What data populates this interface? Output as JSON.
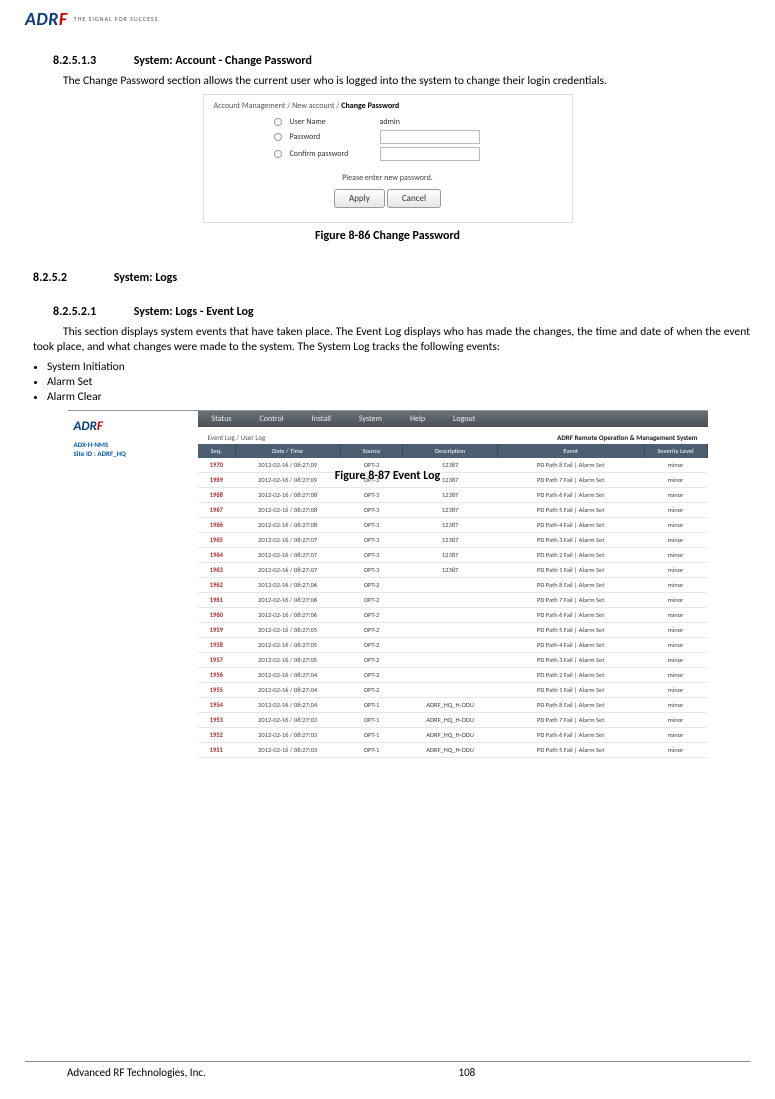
{
  "logo": {
    "brand_prefix": "ADR",
    "brand_f": "F",
    "tagline": "THE SIGNAL FOR SUCCESS"
  },
  "sec1": {
    "num": "8.2.5.1.3",
    "title": "System: Account - Change Password",
    "para": "The Change Password section allows the current user who is logged into the system to change their login credentials."
  },
  "fig1": {
    "breadcrumb_a": "Account Management / New account / ",
    "breadcrumb_b": "Change Password",
    "rows": {
      "user_label": "User Name",
      "user_value": "admin",
      "pw_label": "Password",
      "cpw_label": "Confirm password"
    },
    "msg": "Please enter new password.",
    "apply": "Apply",
    "cancel": "Cancel",
    "caption": "Figure 8-86   Change Password"
  },
  "sec2": {
    "h3_num": "8.2.5.2",
    "h3_title": "System: Logs",
    "h4_num": "8.2.5.2.1",
    "h4_title": "System: Logs - Event Log",
    "para": "This section displays system events that have taken place. The Event Log displays who has made the changes, the time and date of when the event took place, and what changes were made to the system. The System Log tracks the following events:",
    "bullets": [
      "System Initiation",
      "Alarm Set",
      "Alarm Clear"
    ]
  },
  "fig2": {
    "side": {
      "brand_prefix": "ADR",
      "brand_f": "F",
      "line1": "ADX-H-NMS",
      "line2": "Site ID : ADRF_HQ"
    },
    "nav": [
      "Status",
      "Control",
      "Install",
      "System",
      "Help",
      "Logout"
    ],
    "sub_left": "Event Log / User Log",
    "sub_right": "ADRF Remote Operation & Management System",
    "headers": [
      "Seq.",
      "Date / Time",
      "Source",
      "Description",
      "Event",
      "Severity Level"
    ],
    "rows": [
      [
        "1970",
        "2012-02-16 / 08:27:09",
        "OPT-3",
        "12387",
        "PD Path 8 Fail | Alarm Set",
        "minor"
      ],
      [
        "1969",
        "2012-02-16 / 08:27:09",
        "OPT-3",
        "12387",
        "PD Path 7 Fail | Alarm Set",
        "minor"
      ],
      [
        "1968",
        "2012-02-16 / 08:27:08",
        "OPT-3",
        "12387",
        "PD Path 6 Fail | Alarm Set",
        "minor"
      ],
      [
        "1967",
        "2012-02-16 / 08:27:08",
        "OPT-3",
        "12387",
        "PD Path 5 Fail | Alarm Set",
        "minor"
      ],
      [
        "1966",
        "2012-02-16 / 08:27:08",
        "OPT-3",
        "12387",
        "PD Path 4 Fail | Alarm Set",
        "minor"
      ],
      [
        "1965",
        "2012-02-16 / 08:27:07",
        "OPT-3",
        "12387",
        "PD Path 3 Fail | Alarm Set",
        "minor"
      ],
      [
        "1964",
        "2012-02-16 / 08:27:07",
        "OPT-3",
        "12387",
        "PD Path 2 Fail | Alarm Set",
        "minor"
      ],
      [
        "1963",
        "2012-02-16 / 08:27:07",
        "OPT-3",
        "12387",
        "PD Path 1 Fail | Alarm Set",
        "minor"
      ],
      [
        "1962",
        "2012-02-16 / 08:27:06",
        "OPT-2",
        "",
        "PD Path 8 Fail | Alarm Set",
        "minor"
      ],
      [
        "1961",
        "2012-02-16 / 08:27:06",
        "OPT-2",
        "",
        "PD Path 7 Fail | Alarm Set",
        "minor"
      ],
      [
        "1960",
        "2012-02-16 / 08:27:06",
        "OPT-2",
        "",
        "PD Path 6 Fail | Alarm Set",
        "minor"
      ],
      [
        "1959",
        "2012-02-16 / 08:27:05",
        "OPT-2",
        "",
        "PD Path 5 Fail | Alarm Set",
        "minor"
      ],
      [
        "1958",
        "2012-02-16 / 08:27:05",
        "OPT-2",
        "",
        "PD Path 4 Fail | Alarm Set",
        "minor"
      ],
      [
        "1957",
        "2012-02-16 / 08:27:05",
        "OPT-2",
        "",
        "PD Path 3 Fail | Alarm Set",
        "minor"
      ],
      [
        "1956",
        "2012-02-16 / 08:27:04",
        "OPT-2",
        "",
        "PD Path 2 Fail | Alarm Set",
        "minor"
      ],
      [
        "1955",
        "2012-02-16 / 08:27:04",
        "OPT-2",
        "",
        "PD Path 1 Fail | Alarm Set",
        "minor"
      ],
      [
        "1954",
        "2012-02-16 / 08:27:04",
        "OPT-1",
        "ADRF_HQ_H-ODU",
        "PD Path 8 Fail | Alarm Set",
        "minor"
      ],
      [
        "1953",
        "2012-02-16 / 08:27:03",
        "OPT-1",
        "ADRF_HQ_H-ODU",
        "PD Path 7 Fail | Alarm Set",
        "minor"
      ],
      [
        "1952",
        "2012-02-16 / 08:27:03",
        "OPT-1",
        "ADRF_HQ_H-ODU",
        "PD Path 6 Fail | Alarm Set",
        "minor"
      ],
      [
        "1951",
        "2012-02-16 / 08:27:03",
        "OPT-1",
        "ADRF_HQ_H-ODU",
        "PD Path 5 Fail | Alarm Set",
        "minor"
      ]
    ],
    "caption": "Figure 8-87   Event Log"
  },
  "footer": {
    "left": "Advanced RF Technologies, Inc.",
    "page": "108"
  }
}
